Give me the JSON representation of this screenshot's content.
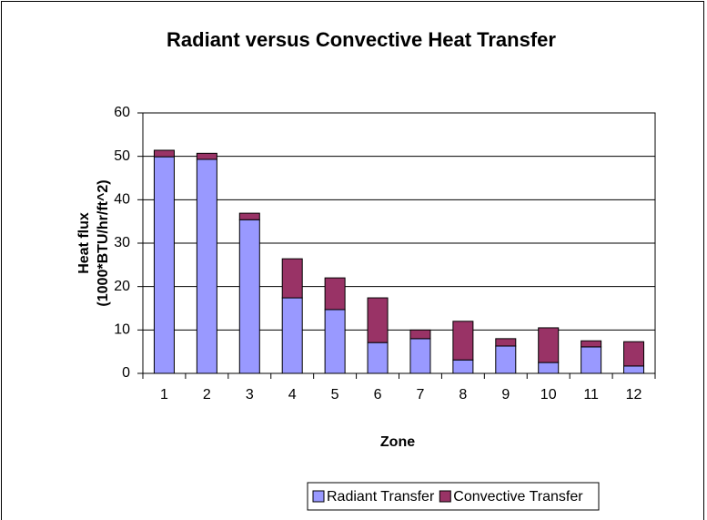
{
  "chart_data": {
    "type": "stacked_bar",
    "title": "Radiant versus Convective Heat Transfer",
    "x_label": "Zone",
    "y_label": [
      "Heat flux",
      "(1000*BTU/hr/ft^2)"
    ],
    "categories": [
      "1",
      "2",
      "3",
      "4",
      "5",
      "6",
      "7",
      "8",
      "9",
      "10",
      "11",
      "12"
    ],
    "series": [
      {
        "name": "Radiant Transfer",
        "color": "#9999ff",
        "values": [
          49.9,
          49.3,
          35.4,
          17.4,
          14.7,
          7.1,
          8,
          3.1,
          6.3,
          2.5,
          6.1,
          1.7
        ]
      },
      {
        "name": "Convective Transfer",
        "color": "#993366",
        "values": [
          1.5,
          1.4,
          1.5,
          9,
          7.3,
          10.3,
          2,
          8.9,
          1.7,
          8,
          1.4,
          5.6
        ]
      }
    ],
    "ylim": [
      0,
      60
    ],
    "yticks": [
      0,
      10,
      20,
      30,
      40,
      50,
      60
    ],
    "grid": true,
    "legend": "bottom"
  }
}
